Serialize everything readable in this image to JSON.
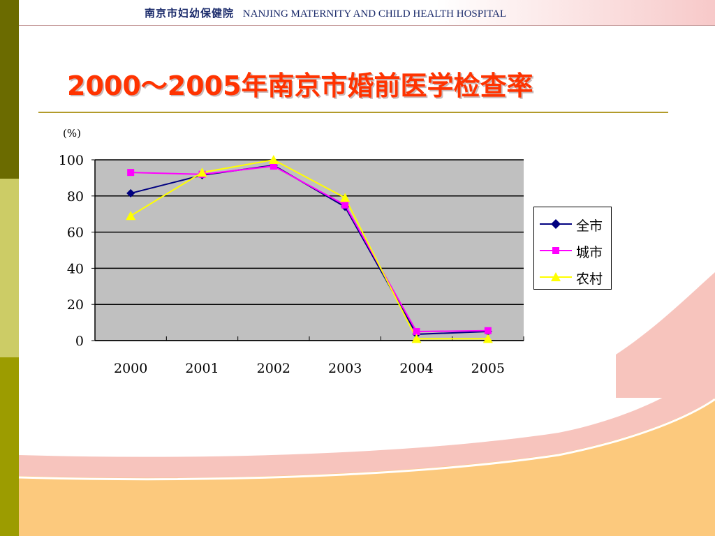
{
  "header": {
    "cn_name": "南京市妇幼保健院",
    "en_name": "NANJING MATERNITY AND CHILD HEALTH HOSPITAL"
  },
  "colors": {
    "title": "#ff3300",
    "plot_bg": "#c0c0c0",
    "series_all": "#000080",
    "series_city": "#ff00ff",
    "series_rural": "#ffff00"
  },
  "chart_data": {
    "type": "line",
    "title": "2000～2005年南京市婚前医学检查率",
    "ylabel": "(%)",
    "xlabel": "",
    "categories": [
      "2000",
      "2001",
      "2002",
      "2003",
      "2004",
      "2005"
    ],
    "ylim": [
      0,
      100
    ],
    "yticks": [
      "0",
      "20",
      "40",
      "60",
      "80",
      "100"
    ],
    "grid": true,
    "legend_position": "right",
    "series": [
      {
        "name": "全市",
        "marker": "diamond",
        "color": "#000080",
        "values": [
          81.5,
          91.5,
          97,
          74,
          3.5,
          5
        ]
      },
      {
        "name": "城市",
        "marker": "square",
        "color": "#ff00ff",
        "values": [
          93,
          92,
          96.5,
          75,
          5,
          5.5
        ]
      },
      {
        "name": "农村",
        "marker": "triangle",
        "color": "#ffff00",
        "values": [
          69,
          93,
          100,
          79,
          1,
          1
        ]
      }
    ]
  }
}
